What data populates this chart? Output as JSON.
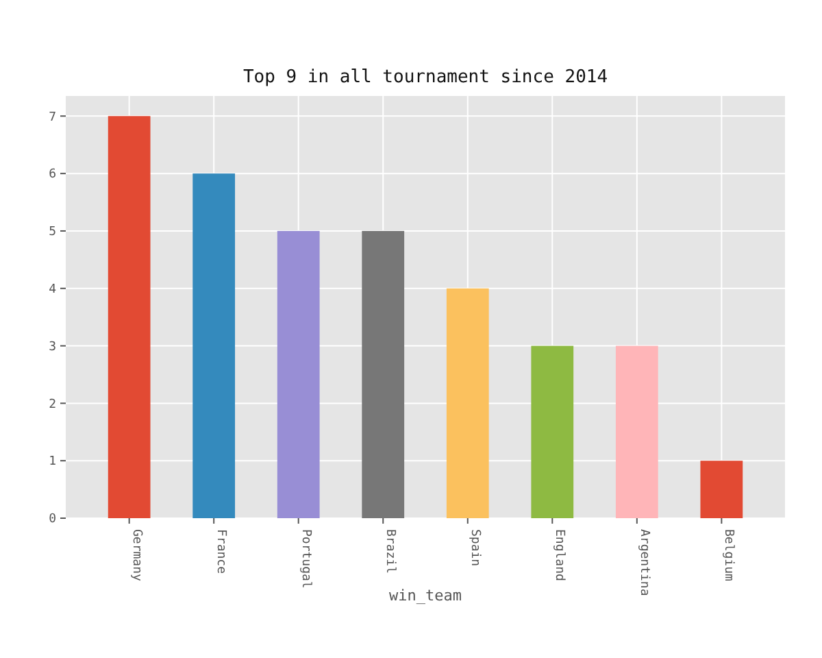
{
  "chart_data": {
    "type": "bar",
    "title": "Top 9 in all tournament since 2014",
    "xlabel": "win_team",
    "categories": [
      "Germany",
      "France",
      "Portugal",
      "Brazil",
      "Spain",
      "England",
      "Argentina",
      "Belgium"
    ],
    "values": [
      7,
      6,
      5,
      5,
      4,
      3,
      3,
      1
    ],
    "colors": [
      "#e24a33",
      "#348abd",
      "#988ed5",
      "#777777",
      "#fbc15e",
      "#8eba42",
      "#ffb5b8",
      "#e24a33"
    ],
    "ylim": [
      0,
      7.35
    ],
    "yticks": [
      0,
      1,
      2,
      3,
      4,
      5,
      6,
      7
    ],
    "grid": true
  }
}
